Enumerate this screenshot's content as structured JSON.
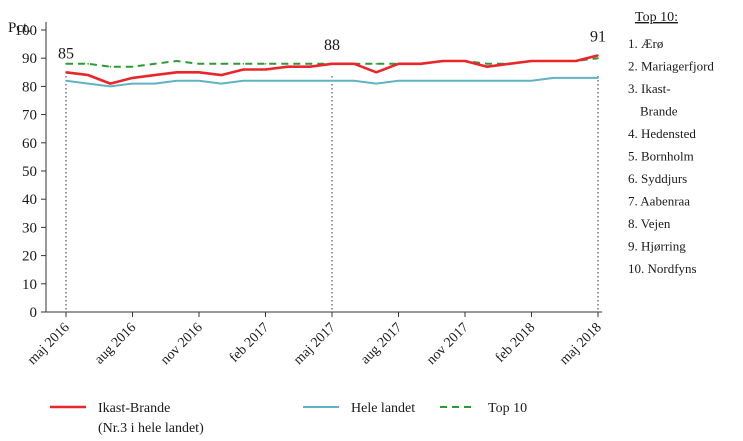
{
  "chart_data": {
    "type": "line",
    "ylabel": "Pct.",
    "ylim": [
      0,
      100
    ],
    "yticks": [
      0,
      10,
      20,
      30,
      40,
      50,
      60,
      70,
      80,
      90,
      100
    ],
    "x_tick_labels": [
      "maj 2016",
      "aug 2016",
      "nov 2016",
      "feb 2017",
      "maj 2017",
      "aug 2017",
      "nov 2017",
      "feb 2018",
      "maj 2018"
    ],
    "x_months": [
      "2016-05",
      "2016-06",
      "2016-07",
      "2016-08",
      "2016-09",
      "2016-10",
      "2016-11",
      "2016-12",
      "2017-01",
      "2017-02",
      "2017-03",
      "2017-04",
      "2017-05",
      "2017-06",
      "2017-07",
      "2017-08",
      "2017-09",
      "2017-10",
      "2017-11",
      "2017-12",
      "2018-01",
      "2018-02",
      "2018-03",
      "2018-04",
      "2018-05"
    ],
    "series": [
      {
        "name": "Ikast-Brande",
        "color": "#e8262b",
        "style": "solid",
        "values": [
          85,
          84,
          81,
          83,
          84,
          85,
          85,
          84,
          86,
          86,
          87,
          87,
          88,
          88,
          85,
          88,
          88,
          89,
          89,
          87,
          88,
          89,
          89,
          89,
          91
        ]
      },
      {
        "name": "Hele landet",
        "color": "#5fb3c4",
        "style": "solid",
        "values": [
          82,
          81,
          80,
          81,
          81,
          82,
          82,
          81,
          82,
          82,
          82,
          82,
          82,
          82,
          81,
          82,
          82,
          82,
          82,
          82,
          82,
          82,
          83,
          83,
          83
        ]
      },
      {
        "name": "Top 10",
        "color": "#2e9a35",
        "style": "dashed",
        "values": [
          88,
          88,
          87,
          87,
          88,
          89,
          88,
          88,
          88,
          88,
          88,
          88,
          88,
          88,
          88,
          88,
          88,
          89,
          89,
          88,
          88,
          89,
          89,
          89,
          90
        ]
      }
    ],
    "vlines": [
      "2016-05",
      "2017-05",
      "2018-05"
    ],
    "annotations": [
      {
        "x": "2016-05",
        "y": 85,
        "text": "85"
      },
      {
        "x": "2017-05",
        "y": 88,
        "text": "88"
      },
      {
        "x": "2018-05",
        "y": 91,
        "text": "91"
      }
    ],
    "legend": {
      "placement": "bottom",
      "items": [
        {
          "label": "Ikast-Brande",
          "sublabel": "(Nr.3 i hele landet)",
          "color": "#e8262b",
          "style": "solid"
        },
        {
          "label": "Hele landet",
          "color": "#5fb3c4",
          "style": "solid"
        },
        {
          "label": "Top 10",
          "color": "#2e9a35",
          "style": "dashed"
        }
      ]
    }
  },
  "side_list": {
    "title": "Top 10:",
    "items": [
      "1. Ærø",
      "2. Mariagerfjord",
      "3. Ikast-",
      "Brande",
      "4. Hedensted",
      "5. Bornholm",
      "6. Syddjurs",
      "7. Aabenraa",
      "8. Vejen",
      "9. Hjørring",
      "10. Nordfyns"
    ]
  }
}
